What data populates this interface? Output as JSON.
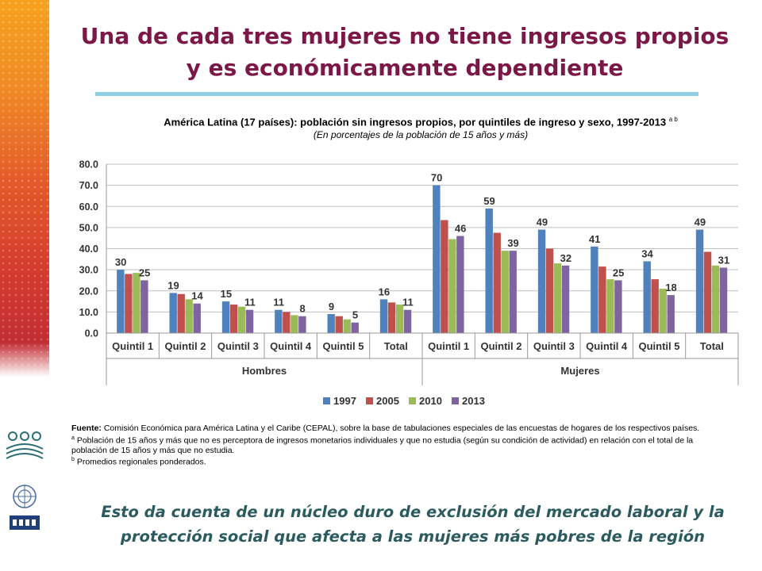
{
  "slide": {
    "title_line1": "Una de cada tres mujeres no tiene ingresos propios",
    "title_line2": "y es económicamente dependiente",
    "footer_line1": "Esto da cuenta de un núcleo duro de exclusión del mercado laboral y la",
    "footer_line2": "protección social que afecta a las mujeres más pobres de la región",
    "accent_color": "#7b1847",
    "footer_color": "#2b5b5e",
    "rule_color": "#8fd0e6"
  },
  "notes": {
    "source_label": "Fuente:",
    "source_text": "Comisión Económica para América Latina y el Caribe (CEPAL), sobre la base de tabulaciones especiales de las encuestas de hogares de los respectivos países.",
    "note_a_mark": "a",
    "note_a_text": "Población de 15 años y  más que no es perceptora de ingresos monetarios individuales y que no estudia (según su condición de actividad) en relación con el total de la población de 15 años y más que no estudia.",
    "note_b_mark": "b",
    "note_b_text": "Promedios regionales ponderados."
  },
  "chart_data": {
    "type": "bar",
    "title": "América Latina (17 países): población sin ingresos propios, por quintiles de ingreso y sexo, 1997-2013",
    "title_superscript": "a b",
    "subtitle": "(En porcentajes de la población de 15 años y más)",
    "xlabel": "",
    "ylabel": "",
    "ylim": [
      0,
      80
    ],
    "yticks": [
      "0.0",
      "10.0",
      "20.0",
      "30.0",
      "40.0",
      "50.0",
      "60.0",
      "70.0",
      "80.0"
    ],
    "grid": true,
    "legend_position": "bottom",
    "categories": [
      "Quintil 1",
      "Quintil 2",
      "Quintil 3",
      "Quintil 4",
      "Quintil 5",
      "Total",
      "Quintil 1",
      "Quintil 2",
      "Quintil 3",
      "Quintil 4",
      "Quintil 5",
      "Total"
    ],
    "groups": [
      {
        "name": "Hombres",
        "span": 6
      },
      {
        "name": "Mujeres",
        "span": 6
      }
    ],
    "series": [
      {
        "name": "1997",
        "color": "#4f81bd",
        "values": [
          30,
          19,
          15,
          11,
          9,
          16,
          70,
          59,
          49,
          41,
          34,
          49
        ]
      },
      {
        "name": "2005",
        "color": "#c0504d",
        "values": [
          28,
          18.5,
          13.5,
          10,
          8,
          14.5,
          53.5,
          47.5,
          40,
          31.5,
          25.5,
          38.5
        ]
      },
      {
        "name": "2010",
        "color": "#9bbb59",
        "values": [
          28.5,
          16,
          12.5,
          8.5,
          6.5,
          13.5,
          44.5,
          39,
          33,
          25.5,
          21,
          32
        ]
      },
      {
        "name": "2013",
        "color": "#8064a2",
        "values": [
          25,
          14,
          11,
          8,
          5,
          11,
          46,
          39,
          32,
          25,
          18,
          31
        ]
      }
    ],
    "data_labels": [
      {
        "series_index": 0,
        "labels": [
          "30",
          "19",
          "15",
          "11",
          "9",
          "16",
          "70",
          "59",
          "49",
          "41",
          "34",
          "49"
        ]
      },
      {
        "series_index": 3,
        "labels": [
          "25",
          "14",
          "11",
          "8",
          "5",
          "11",
          "46",
          "39",
          "32",
          "25",
          "18",
          "31"
        ]
      }
    ]
  }
}
